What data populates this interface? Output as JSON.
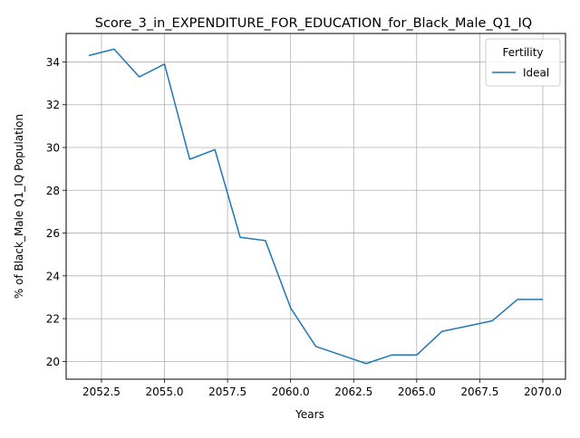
{
  "chart_data": {
    "type": "line",
    "title": "Score_3_in_EXPENDITURE_FOR_EDUCATION_for_Black_Male_Q1_IQ",
    "xlabel": "Years",
    "ylabel": "% of Black_Male Q1_IQ Population",
    "xlim": [
      2051.1,
      2070.9
    ],
    "ylim": [
      19.17,
      35.33
    ],
    "x_ticks": [
      2052.5,
      2055.0,
      2057.5,
      2060.0,
      2062.5,
      2065.0,
      2067.5,
      2070.0
    ],
    "x_tick_labels": [
      "2052.5",
      "2055.0",
      "2057.5",
      "2060.0",
      "2062.5",
      "2065.0",
      "2067.5",
      "2070.0"
    ],
    "y_ticks": [
      20,
      22,
      24,
      26,
      28,
      30,
      32,
      34
    ],
    "y_tick_labels": [
      "20",
      "22",
      "24",
      "26",
      "28",
      "30",
      "32",
      "34"
    ],
    "grid": true,
    "legend": {
      "title": "Fertility",
      "placement": "top-right"
    },
    "series": [
      {
        "name": "Ideal",
        "color": "#1f77b4",
        "x": [
          2052,
          2053,
          2054,
          2055,
          2056,
          2057,
          2058,
          2059,
          2060,
          2061,
          2062,
          2063,
          2064,
          2065,
          2066,
          2067,
          2068,
          2069,
          2070
        ],
        "y": [
          34.3,
          34.6,
          33.3,
          33.9,
          29.45,
          29.9,
          25.8,
          25.65,
          22.5,
          20.7,
          20.3,
          19.9,
          20.3,
          20.3,
          21.4,
          21.65,
          21.9,
          22.9,
          22.9
        ]
      }
    ]
  }
}
